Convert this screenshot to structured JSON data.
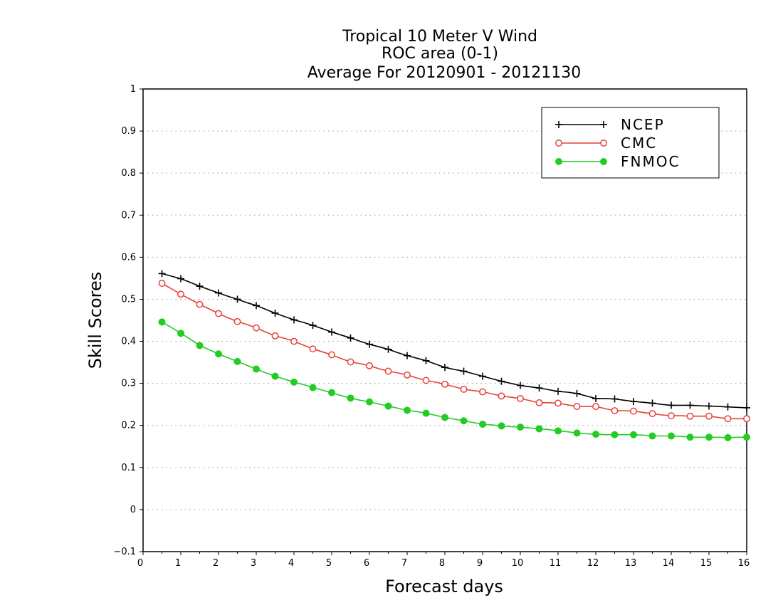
{
  "chart_data": {
    "type": "line",
    "title": [
      "Tropical 10 Meter V Wind",
      "ROC area (0-1)",
      "Average For 20120901 - 20121130"
    ],
    "xlabel": "Forecast days",
    "ylabel": "Skill Scores",
    "xlim": [
      0,
      16
    ],
    "ylim": [
      -0.1,
      1
    ],
    "xticks": [
      "0",
      "1",
      "2",
      "3",
      "4",
      "5",
      "6",
      "7",
      "8",
      "9",
      "10",
      "11",
      "12",
      "13",
      "14",
      "15",
      "16"
    ],
    "yticks": [
      "−0.1",
      "0",
      "0.1",
      "0.2",
      "0.3",
      "0.4",
      "0.5",
      "0.6",
      "0.7",
      "0.8",
      "0.9",
      "1"
    ],
    "grid": true,
    "legend_position": "top-right",
    "x": [
      0.5,
      0.75,
      1.0,
      1.25,
      1.5,
      1.75,
      2.0,
      2.25,
      2.5,
      2.75,
      3.0,
      3.25,
      3.5,
      3.75,
      4.0,
      4.25,
      4.5,
      4.75,
      5.0,
      5.25,
      5.5,
      5.75,
      6.0,
      6.25,
      6.5,
      6.75,
      7.0,
      7.25,
      7.5,
      7.75,
      8.0,
      8.25,
      8.5,
      8.75,
      9.0,
      9.25,
      9.5,
      9.75,
      10.0,
      10.25,
      10.5,
      10.75,
      11.0,
      11.25,
      11.5,
      11.75,
      12.0,
      12.25,
      12.5,
      12.75,
      13.0,
      13.25,
      13.5,
      13.75,
      14.0,
      14.25,
      14.5,
      14.75,
      15.0,
      15.25,
      15.5,
      15.75,
      16.0
    ],
    "series": [
      {
        "name": "NCEP",
        "color": "#000000",
        "marker": "plus",
        "values": [
          0.561,
          0.555,
          0.549,
          0.54,
          0.531,
          0.523,
          0.515,
          0.507,
          0.5,
          0.492,
          0.485,
          0.476,
          0.467,
          0.459,
          0.451,
          0.445,
          0.438,
          0.43,
          0.422,
          0.415,
          0.408,
          0.4,
          0.393,
          0.387,
          0.381,
          0.373,
          0.366,
          0.36,
          0.354,
          0.346,
          0.338,
          0.333,
          0.329,
          0.323,
          0.317,
          0.311,
          0.305,
          0.3,
          0.295,
          0.292,
          0.289,
          0.285,
          0.281,
          0.279,
          0.276,
          0.27,
          0.264,
          0.264,
          0.263,
          0.26,
          0.257,
          0.255,
          0.253,
          0.25,
          0.248,
          0.248,
          0.248,
          0.247,
          0.246,
          0.245,
          0.244,
          0.243,
          0.242
        ]
      },
      {
        "name": "CMC",
        "color": "#e8413a",
        "marker": "open-circle",
        "values": [
          0.538,
          0.525,
          0.512,
          0.5,
          0.488,
          0.477,
          0.466,
          0.456,
          0.447,
          0.44,
          0.432,
          0.422,
          0.413,
          0.407,
          0.4,
          0.391,
          0.382,
          0.375,
          0.368,
          0.359,
          0.351,
          0.347,
          0.342,
          0.335,
          0.329,
          0.325,
          0.32,
          0.313,
          0.307,
          0.303,
          0.298,
          0.292,
          0.286,
          0.283,
          0.28,
          0.275,
          0.27,
          0.267,
          0.264,
          0.259,
          0.254,
          0.254,
          0.253,
          0.249,
          0.245,
          0.245,
          0.245,
          0.24,
          0.235,
          0.235,
          0.234,
          0.231,
          0.228,
          0.225,
          0.223,
          0.223,
          0.222,
          0.222,
          0.222,
          0.219,
          0.216,
          0.216,
          0.216
        ]
      },
      {
        "name": "FNMOC",
        "color": "#22cc22",
        "marker": "filled-circle",
        "values": [
          0.446,
          0.433,
          0.419,
          0.405,
          0.39,
          0.38,
          0.37,
          0.361,
          0.352,
          0.343,
          0.334,
          0.325,
          0.317,
          0.31,
          0.303,
          0.297,
          0.29,
          0.284,
          0.278,
          0.271,
          0.265,
          0.26,
          0.256,
          0.251,
          0.246,
          0.241,
          0.236,
          0.233,
          0.229,
          0.224,
          0.219,
          0.215,
          0.211,
          0.207,
          0.203,
          0.201,
          0.199,
          0.197,
          0.196,
          0.194,
          0.192,
          0.19,
          0.187,
          0.185,
          0.182,
          0.18,
          0.179,
          0.178,
          0.178,
          0.178,
          0.178,
          0.177,
          0.175,
          0.175,
          0.175,
          0.174,
          0.172,
          0.172,
          0.172,
          0.172,
          0.171,
          0.172,
          0.172
        ]
      }
    ]
  }
}
